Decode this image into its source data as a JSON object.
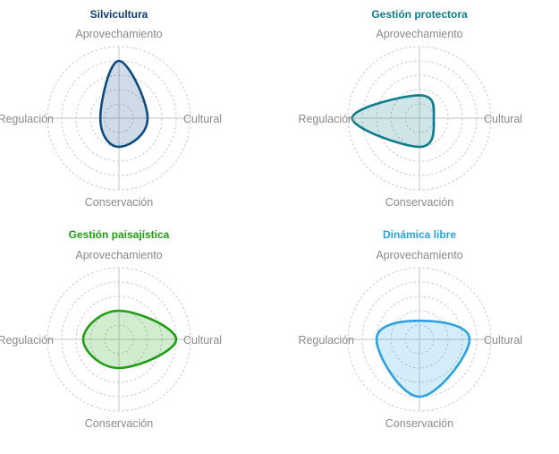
{
  "chart_data": [
    {
      "type": "radar",
      "title": "Silvicultura",
      "axes": [
        "Aprovechamiento",
        "Cultural",
        "Conservación",
        "Regulación"
      ],
      "values": [
        4,
        2,
        2,
        1.3
      ],
      "max": 5,
      "colors": {
        "stroke": "#0f4c81",
        "fill": "#0f4c81",
        "title": "#0d3b73"
      }
    },
    {
      "type": "radar",
      "title": "Gestión protectora",
      "axes": [
        "Aprovechamiento",
        "Cultural",
        "Conservación",
        "Regulación"
      ],
      "values": [
        1.6,
        1,
        2,
        4.7
      ],
      "max": 5,
      "colors": {
        "stroke": "#0e7c8c",
        "fill": "#0e7c8c",
        "title": "#0e7c8c"
      }
    },
    {
      "type": "radar",
      "title": "Gestión paisajística",
      "axes": [
        "Aprovechamiento",
        "Cultural",
        "Conservación",
        "Regulación"
      ],
      "values": [
        2,
        4,
        2,
        2.5
      ],
      "max": 5,
      "colors": {
        "stroke": "#1f9e12",
        "fill": "#1f9e12",
        "title": "#1f9e12"
      }
    },
    {
      "type": "radar",
      "title": "Dinámica libre",
      "axes": [
        "Aprovechamiento",
        "Cultural",
        "Conservación",
        "Regulación"
      ],
      "values": [
        1.3,
        3.5,
        4,
        3
      ],
      "max": 5,
      "colors": {
        "stroke": "#2aa3e0",
        "fill": "#2aa3e0",
        "title": "#2aa3e0"
      }
    }
  ]
}
